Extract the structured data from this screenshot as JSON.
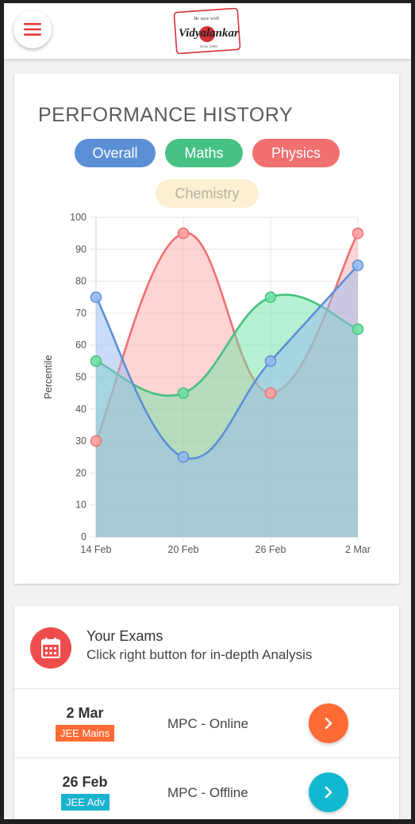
{
  "header": {
    "logo": {
      "tagline": "Be sure with",
      "name": "Vidyalankar",
      "since": "since 1959"
    }
  },
  "performance": {
    "title": "PERFORMANCE HISTORY",
    "filters": [
      "Overall",
      "Maths",
      "Physics",
      "Chemistry"
    ]
  },
  "chart_data": {
    "type": "area",
    "x": [
      "14 Feb",
      "20 Feb",
      "26 Feb",
      "2 Mar"
    ],
    "ylabel": "Percentile",
    "ylim": [
      0,
      100
    ],
    "yticks": [
      0,
      10,
      20,
      30,
      40,
      50,
      60,
      70,
      80,
      90,
      100
    ],
    "grid": true,
    "smooth": true,
    "series": [
      {
        "values": [
          30,
          95,
          45,
          95
        ],
        "color": "#f07070",
        "fill": "rgba(255,160,160,0.45)"
      },
      {
        "values": [
          55,
          45,
          75,
          65
        ],
        "color": "#46c07e",
        "fill": "rgba(110,225,165,0.50)"
      },
      {
        "values": [
          75,
          25,
          55,
          85
        ],
        "color": "#5b8fd6",
        "fill": "rgba(150,185,240,0.50)"
      }
    ]
  },
  "exams": {
    "title": "Your Exams",
    "subtitle": "Click right button for in-depth Analysis",
    "items": [
      {
        "date": "2 Mar",
        "type": "JEE Mains",
        "type_color": "#ff6b35",
        "subject": "MPC - Online",
        "button_color": "#ff6b35"
      },
      {
        "date": "26 Feb",
        "type": "JEE Adv",
        "type_color": "#1ab3cf",
        "subject": "MPC - Offline",
        "button_color": "#12b8cf"
      }
    ]
  }
}
